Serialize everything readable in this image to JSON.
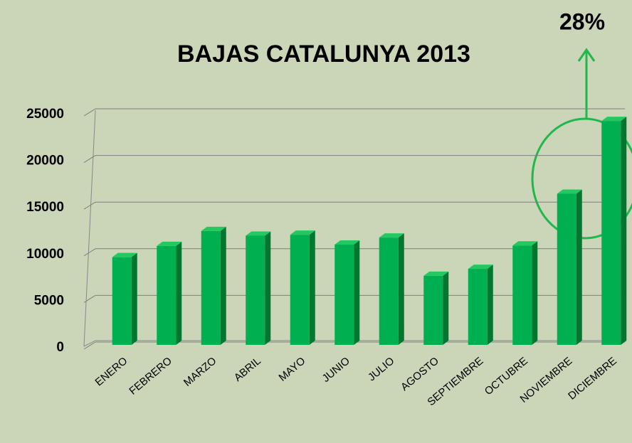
{
  "chart_data": {
    "type": "bar3d",
    "title": "BAJAS CATALUNYA 2013",
    "annotation": "28%",
    "categories": [
      "ENERO",
      "FEBRERO",
      "MARZO",
      "ABRIL",
      "MAYO",
      "JUNIO",
      "JULIO",
      "AGOSTO",
      "SEPTIEMBRE",
      "OCTUBRE",
      "NOVIEMBRE",
      "DICIEMBRE"
    ],
    "values": [
      9400,
      10600,
      12200,
      11700,
      11800,
      10750,
      11500,
      7400,
      8150,
      10650,
      16200,
      24000
    ],
    "color": "#00b050",
    "ylim": [
      0,
      25000
    ],
    "yticks": [
      0,
      5000,
      10000,
      15000,
      20000,
      25000
    ],
    "grid": true
  }
}
